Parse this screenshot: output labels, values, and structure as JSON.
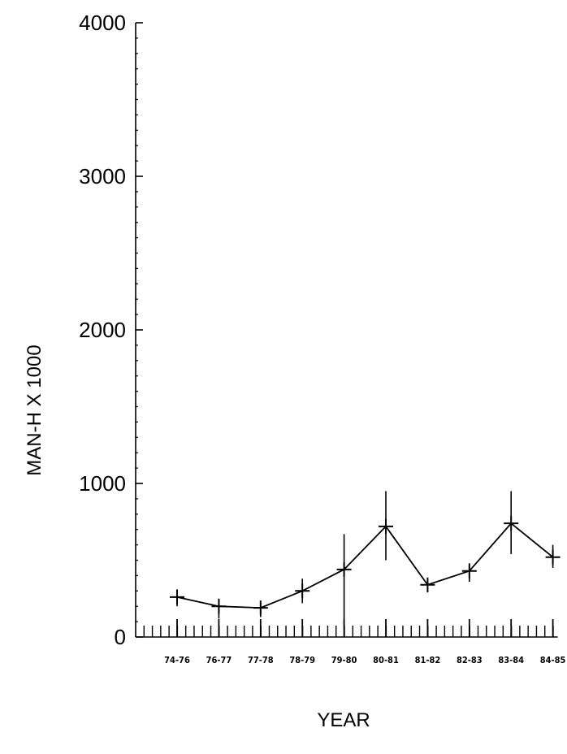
{
  "chart_data": {
    "type": "line",
    "title": "",
    "xlabel": "YEAR",
    "ylabel": "MAN-H X 1000",
    "ylim": [
      0,
      4000
    ],
    "yticks": [
      "0",
      "1000",
      "2000",
      "3000",
      "4000"
    ],
    "categories": [
      "74-76",
      "76-77",
      "77-78",
      "78-79",
      "79-80",
      "80-81",
      "81-82",
      "82-83",
      "83-84",
      "84-85"
    ],
    "series": [
      {
        "values": [
          260,
          200,
          190,
          300,
          440,
          720,
          340,
          430,
          740,
          520
        ],
        "error_low": [
          200,
          120,
          130,
          220,
          60,
          500,
          290,
          360,
          540,
          450
        ],
        "error_high": [
          310,
          250,
          230,
          380,
          670,
          950,
          370,
          480,
          950,
          600
        ]
      }
    ],
    "grid": false,
    "legend": "none"
  }
}
